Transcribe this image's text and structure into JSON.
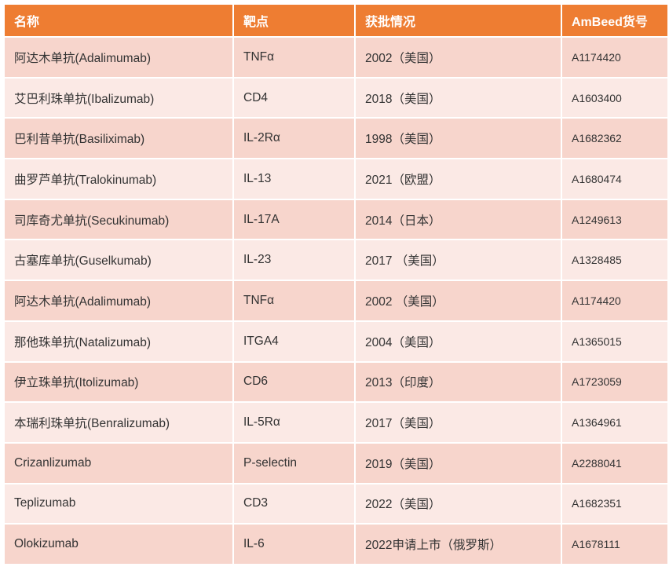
{
  "colors": {
    "header": "#ee7d32",
    "row_odd": "#f7d5cc",
    "row_even": "#fbe9e5"
  },
  "headers": [
    "名称",
    "靶点",
    "获批情况",
    "AmBeed货号"
  ],
  "rows": [
    [
      "阿达木单抗(Adalimumab)",
      "TNFα",
      "2002（美国）",
      "A1174420"
    ],
    [
      "艾巴利珠单抗(Ibalizumab)",
      "CD4",
      "2018（美国）",
      "A1603400"
    ],
    [
      "巴利昔单抗(Basiliximab)",
      "IL-2Rα",
      "1998（美国）",
      "A1682362"
    ],
    [
      "曲罗芦单抗(Tralokinumab)",
      "IL-13",
      "2021（欧盟）",
      "A1680474"
    ],
    [
      "司库奇尤单抗(Secukinumab)",
      "IL-17A",
      "2014（日本）",
      "A1249613"
    ],
    [
      "古塞库单抗(Guselkumab)",
      "IL-23",
      "2017 （美国）",
      "A1328485"
    ],
    [
      "阿达木单抗(Adalimumab)",
      "TNFα",
      "2002 （美国）",
      "A1174420"
    ],
    [
      "那他珠单抗(Natalizumab)",
      "ITGA4",
      "2004（美国）",
      "A1365015"
    ],
    [
      "伊立珠单抗(Itolizumab)",
      "CD6",
      "2013（印度）",
      "A1723059"
    ],
    [
      "本瑞利珠单抗(Benralizumab)",
      "IL-5Rα",
      "2017（美国）",
      "A1364961"
    ],
    [
      "Crizanlizumab",
      "P-selectin",
      "2019（美国）",
      "A2288041"
    ],
    [
      "Teplizumab",
      "CD3",
      "2022（美国）",
      "A1682351"
    ],
    [
      "Olokizumab",
      "IL-6",
      "2022申请上市（俄罗斯）",
      "A1678111"
    ]
  ]
}
